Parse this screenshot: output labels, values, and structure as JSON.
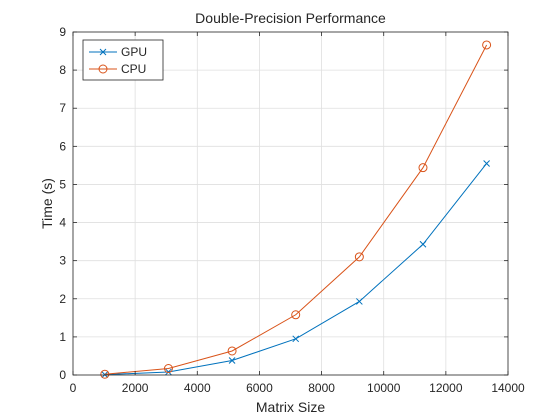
{
  "chart_data": {
    "type": "line",
    "title": "Double-Precision Performance",
    "xlabel": "Matrix Size",
    "ylabel": "Time (s)",
    "xlim": [
      0,
      14000
    ],
    "ylim": [
      0,
      9
    ],
    "xticks": [
      0,
      2000,
      4000,
      6000,
      8000,
      10000,
      12000,
      14000
    ],
    "yticks": [
      0,
      1,
      2,
      3,
      4,
      5,
      6,
      7,
      8,
      9
    ],
    "grid": true,
    "legend_position": "top-left",
    "series": [
      {
        "name": "GPU",
        "color": "#0072bd",
        "marker": "x",
        "x": [
          1024,
          3072,
          5120,
          7168,
          9216,
          11264,
          13312
        ],
        "y": [
          0.01,
          0.08,
          0.38,
          0.95,
          1.93,
          3.43,
          5.55
        ]
      },
      {
        "name": "CPU",
        "color": "#d95319",
        "marker": "circle",
        "x": [
          1024,
          3072,
          5120,
          7168,
          9216,
          11264,
          13312
        ],
        "y": [
          0.02,
          0.17,
          0.63,
          1.58,
          3.1,
          5.44,
          8.66
        ]
      }
    ]
  }
}
